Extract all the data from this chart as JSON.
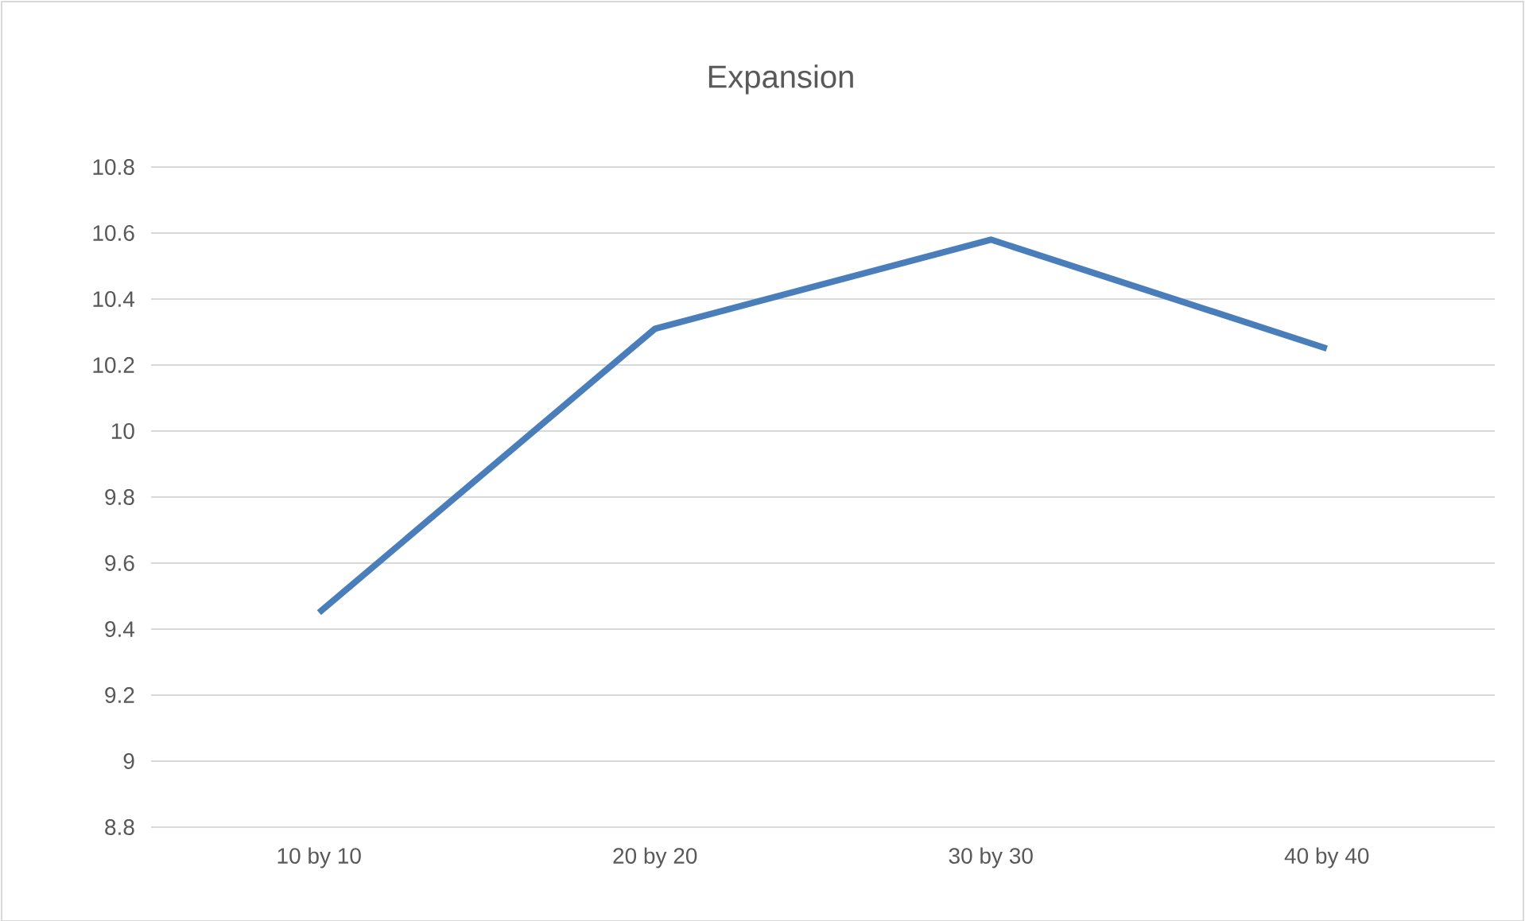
{
  "chart_data": {
    "type": "line",
    "title": "Expansion",
    "categories": [
      "10 by 10",
      "20 by 20",
      "30 by 30",
      "40 by 40"
    ],
    "series": [
      {
        "color": "#4a7ebb",
        "values": [
          9.45,
          10.31,
          10.58,
          10.25
        ]
      }
    ],
    "ylim": [
      8.8,
      10.8
    ],
    "yticks": [
      8.8,
      9,
      9.2,
      9.4,
      9.6,
      9.8,
      10,
      10.2,
      10.4,
      10.6,
      10.8
    ],
    "grid": "y",
    "marker": "none",
    "line_style": "solid",
    "legend": false
  }
}
